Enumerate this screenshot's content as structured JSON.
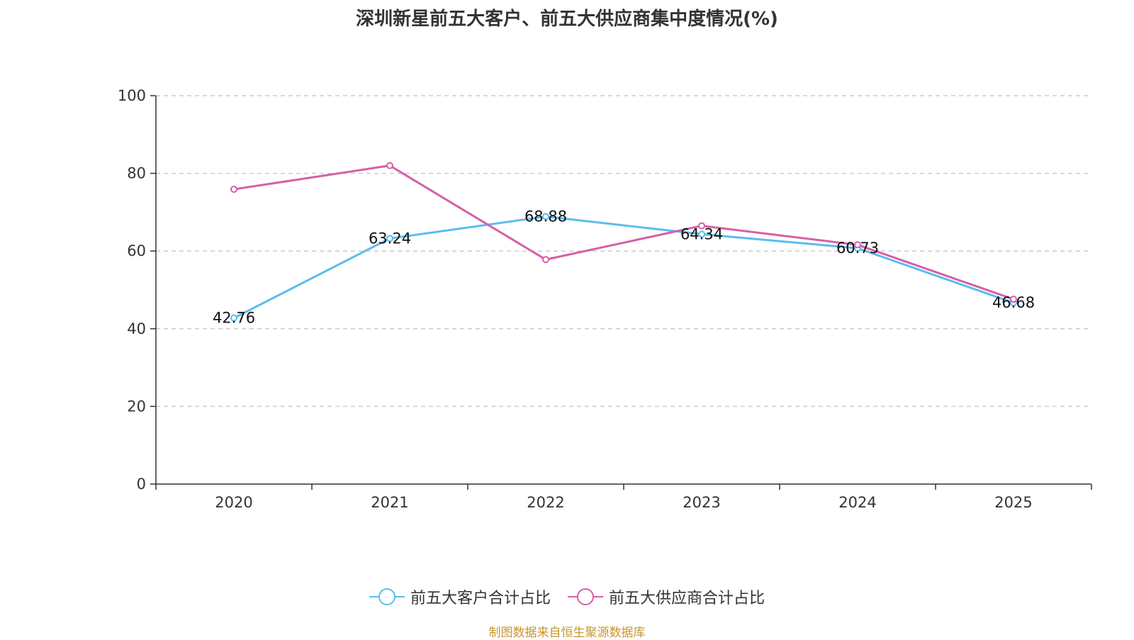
{
  "chart_data": {
    "type": "line",
    "title": "深圳新星前五大客户、前五大供应商集中度情况(%)",
    "categories": [
      "2020",
      "2021",
      "2022",
      "2023",
      "2024",
      "2025"
    ],
    "y_ticks": [
      "0",
      "20",
      "40",
      "60",
      "80",
      "100"
    ],
    "ylim": [
      0,
      100
    ],
    "grid": true,
    "legend_position": "bottom",
    "series": [
      {
        "name": "前五大客户合计占比",
        "color": "#5bbcf0",
        "values": [
          42.76,
          63.24,
          68.88,
          64.34,
          60.73,
          46.68
        ],
        "labels": [
          "42.76",
          "63.24",
          "68.88",
          "64.34",
          "60.73",
          "46.68"
        ]
      },
      {
        "name": "前五大供应商合计占比",
        "color": "#d65fa6",
        "values": [
          75.9,
          82.0,
          57.8,
          66.5,
          61.6,
          47.6
        ]
      }
    ],
    "source": "制图数据来自恒生聚源数据库"
  }
}
